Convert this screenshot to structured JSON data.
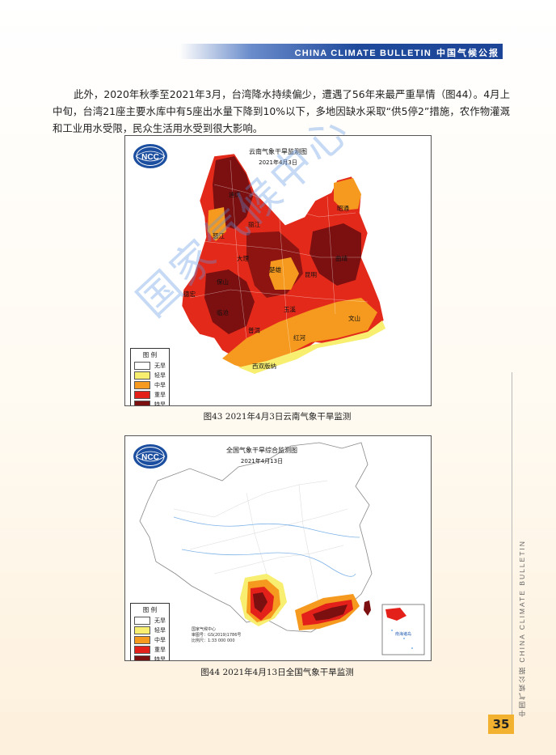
{
  "header": {
    "english": "CHINA CLIMATE BULLETIN",
    "chinese": "中国气候公报"
  },
  "body_text": "此外，2020年秋季至2021年3月，台湾降水持续偏少，遭遇了56年来最严重旱情（图44）。4月上中旬，台湾21座主要水库中有5座出水量下降到10%以下，多地因缺水采取“供5停2”措施，农作物灌溉和工业用水受限，民众生活用水受到很大影响。",
  "logo_text": "NCC",
  "figure43": {
    "map_title": "云南气象干旱监测图",
    "map_date": "2021年4月3日",
    "caption": "图43  2021年4月3日云南气象干旱监测",
    "cities": [
      "迪庆",
      "怒江",
      "丽江",
      "昭通",
      "大理",
      "曲靖",
      "楚雄",
      "昆明",
      "保山",
      "德宏",
      "临沧",
      "玉溪",
      "普洱",
      "文山",
      "红河",
      "西双版纳"
    ]
  },
  "figure44": {
    "map_title": "全国气象干旱综合监测图",
    "map_date": "2021年4月13日",
    "caption": "图44  2021年4月13日全国气象干旱监测",
    "credit": [
      "国家气候中心",
      "审图号：GS(2019)1786号",
      "比例尺：1:33 000 000"
    ],
    "inset_label": "南海诸岛"
  },
  "legend": {
    "title": "图  例",
    "items": [
      {
        "label": "无旱",
        "color": "#ffffff"
      },
      {
        "label": "轻旱",
        "color": "#f8ee70"
      },
      {
        "label": "中旱",
        "color": "#f59a1e"
      },
      {
        "label": "重旱",
        "color": "#e3211a"
      },
      {
        "label": "特旱",
        "color": "#7c0f10"
      }
    ]
  },
  "watermark": "国家气候中心",
  "sidebar_text": "中国气候公报   CHINA CLIMATE BULLETIN",
  "page_number": "35"
}
